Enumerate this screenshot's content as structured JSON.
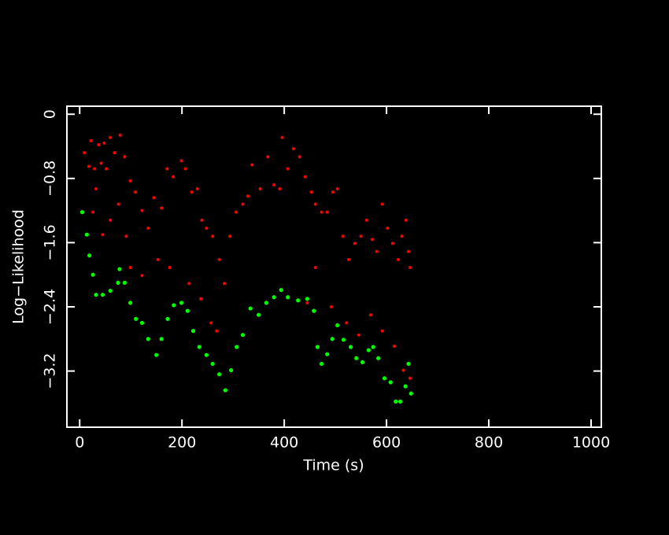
{
  "chart_data": {
    "type": "scatter",
    "x_label": "Time (s)",
    "y_label": "Log−Likelihood",
    "xlim": [
      -25,
      1020
    ],
    "ylim": [
      -3.9,
      0.1
    ],
    "xticks": [
      0,
      200,
      400,
      600,
      800,
      1000
    ],
    "yticks": [
      0,
      {
        "value": -0.8,
        "label": "−0.8"
      },
      {
        "value": -1.6,
        "label": "−1.6"
      },
      {
        "value": -2.4,
        "label": "−2.4"
      },
      {
        "value": -3.2,
        "label": "−3.2"
      }
    ],
    "grid": false,
    "background": "#000000",
    "axis_color": "#ffffff",
    "series": [
      {
        "color": "#ff0000",
        "x": [
          9,
          22,
          37,
          48,
          60,
          79,
          18,
          29,
          42,
          52,
          68,
          88,
          26,
          32,
          45,
          60,
          76,
          91,
          99,
          109,
          122,
          134,
          145,
          160,
          171,
          183,
          199,
          207,
          219,
          230,
          239,
          248,
          260,
          273,
          283,
          294,
          306,
          319,
          329,
          337,
          353,
          368,
          380,
          391,
          396,
          407,
          418,
          430,
          441,
          453,
          461,
          473,
          484,
          495,
          504,
          515,
          526,
          538,
          550,
          561,
          572,
          581,
          592,
          602,
          612,
          623,
          630,
          638,
          643,
          646,
          99,
          122,
          153,
          176,
          214,
          237,
          257,
          268,
          445,
          461,
          492,
          522,
          546,
          569,
          592,
          615,
          633,
          646
        ],
        "values": [
          -0.48,
          -0.33,
          -0.38,
          -0.36,
          -0.29,
          -0.26,
          -0.65,
          -0.68,
          -0.61,
          -0.68,
          -0.48,
          -0.53,
          -1.22,
          -0.93,
          -1.5,
          -1.32,
          -1.12,
          -1.52,
          -0.83,
          -0.97,
          -1.2,
          -1.42,
          -1.04,
          -1.17,
          -0.68,
          -0.78,
          -0.58,
          -0.68,
          -0.97,
          -0.93,
          -1.32,
          -1.42,
          -1.52,
          -1.81,
          -2.11,
          -1.52,
          -1.22,
          -1.12,
          -1.02,
          -0.63,
          -0.93,
          -0.53,
          -0.88,
          -0.93,
          -0.29,
          -0.68,
          -0.43,
          -0.53,
          -0.78,
          -0.97,
          -1.12,
          -1.22,
          -1.22,
          -0.97,
          -0.93,
          -1.52,
          -1.81,
          -1.61,
          -1.52,
          -1.32,
          -1.56,
          -1.71,
          -1.12,
          -1.42,
          -1.61,
          -1.81,
          -1.52,
          -1.32,
          -1.71,
          -1.91,
          -1.91,
          -2.01,
          -1.81,
          -1.91,
          -2.11,
          -2.3,
          -2.6,
          -2.7,
          -2.35,
          -1.91,
          -2.4,
          -2.6,
          -2.75,
          -2.5,
          -2.7,
          -2.89,
          -3.19,
          -3.29
        ]
      },
      {
        "color": "#00ff00",
        "x": [
          5,
          14,
          19,
          26,
          32,
          45,
          60,
          75,
          78,
          88,
          99,
          110,
          122,
          134,
          150,
          160,
          172,
          184,
          199,
          211,
          222,
          234,
          248,
          260,
          273,
          285,
          296,
          307,
          319,
          334,
          350,
          365,
          380,
          394,
          407,
          427,
          445,
          458,
          465,
          473,
          484,
          494,
          504,
          516,
          530,
          541,
          553,
          565,
          574,
          584,
          596,
          608,
          618,
          627,
          637,
          643,
          648
        ],
        "values": [
          -1.22,
          -1.5,
          -1.76,
          -2.0,
          -2.25,
          -2.25,
          -2.2,
          -2.1,
          -1.93,
          -2.1,
          -2.35,
          -2.55,
          -2.6,
          -2.8,
          -3.0,
          -2.8,
          -2.55,
          -2.38,
          -2.35,
          -2.45,
          -2.7,
          -2.9,
          -3.0,
          -3.11,
          -3.24,
          -3.44,
          -3.19,
          -2.9,
          -2.75,
          -2.42,
          -2.5,
          -2.35,
          -2.28,
          -2.19,
          -2.28,
          -2.32,
          -2.3,
          -2.45,
          -2.9,
          -3.11,
          -2.99,
          -2.8,
          -2.63,
          -2.81,
          -2.9,
          -3.04,
          -3.09,
          -2.94,
          -2.9,
          -3.04,
          -3.29,
          -3.34,
          -3.58,
          -3.58,
          -3.39,
          -3.11,
          -3.48
        ]
      }
    ]
  }
}
